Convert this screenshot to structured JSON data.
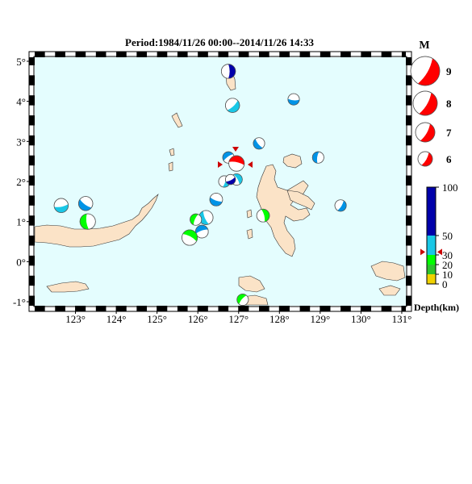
{
  "title": "Period:1984/11/26 00:00--2014/11/26 14:33",
  "colors": {
    "sea": "#e4fdfe",
    "land": "#fbe3c7",
    "compression": "#ff0000",
    "shallow": "#00ff00",
    "intermediate": "#0093e6",
    "intermediate_light": "#19c7e6",
    "deep": "#0000aa",
    "marker": "#cc0000"
  },
  "map": {
    "lon_range": [
      122.0,
      131.1
    ],
    "lat_range": [
      -1.1,
      5.1
    ],
    "lon_ticks": [
      "123°",
      "124°",
      "125°",
      "126°",
      "127°",
      "128°",
      "129°",
      "130°",
      "131°"
    ],
    "lat_ticks": [
      "5°",
      "4°",
      "3°",
      "2°",
      "1°",
      "0°",
      "-1°"
    ]
  },
  "events": [
    {
      "lon": 126.75,
      "lat": 4.75,
      "color": "#0000aa",
      "mag": 6.4
    },
    {
      "lon": 126.85,
      "lat": 3.9,
      "color": "#19c7e6",
      "mag": 6.4
    },
    {
      "lon": 128.35,
      "lat": 4.05,
      "color": "#0093e6",
      "mag": 6.0
    },
    {
      "lon": 127.5,
      "lat": 2.95,
      "color": "#0093e6",
      "mag": 6.0
    },
    {
      "lon": 128.95,
      "lat": 2.6,
      "color": "#0093e6",
      "mag": 6.0
    },
    {
      "lon": 126.75,
      "lat": 2.6,
      "color": "#0093e6",
      "mag": 6.0
    },
    {
      "lon": 126.95,
      "lat": 2.45,
      "color": "#ff0000",
      "mag": 6.6
    },
    {
      "lon": 126.95,
      "lat": 2.05,
      "color": "#19c7e6",
      "mag": 6.0
    },
    {
      "lon": 126.65,
      "lat": 2.0,
      "color": "#19c7e6",
      "mag": 6.0
    },
    {
      "lon": 126.8,
      "lat": 2.05,
      "color": "#0000aa",
      "mag": 5.8
    },
    {
      "lon": 126.45,
      "lat": 1.55,
      "color": "#0093e6",
      "mag": 6.2
    },
    {
      "lon": 126.2,
      "lat": 1.1,
      "color": "#19c7e6",
      "mag": 6.4
    },
    {
      "lon": 125.95,
      "lat": 1.05,
      "color": "#00ff00",
      "mag": 6.0
    },
    {
      "lon": 126.1,
      "lat": 0.75,
      "color": "#0093e6",
      "mag": 6.2
    },
    {
      "lon": 125.8,
      "lat": 0.6,
      "color": "#00ff00",
      "mag": 6.6
    },
    {
      "lon": 127.6,
      "lat": 1.15,
      "color": "#00ff00",
      "mag": 6.2
    },
    {
      "lon": 129.5,
      "lat": 1.4,
      "color": "#0093e6",
      "mag": 6.0
    },
    {
      "lon": 122.65,
      "lat": 1.4,
      "color": "#19c7e6",
      "mag": 6.4
    },
    {
      "lon": 123.25,
      "lat": 1.45,
      "color": "#0093e6",
      "mag": 6.4
    },
    {
      "lon": 123.3,
      "lat": 1.0,
      "color": "#00ff00",
      "mag": 6.6
    },
    {
      "lon": 127.1,
      "lat": -0.95,
      "color": "#00ff00",
      "mag": 6.0
    }
  ],
  "legend": {
    "mag_title": "M",
    "magnitudes": [
      {
        "label": "9",
        "mag": 9
      },
      {
        "label": "8",
        "mag": 8
      },
      {
        "label": "7",
        "mag": 7
      },
      {
        "label": "6",
        "mag": 6
      }
    ],
    "depth_title": "Depth(km)",
    "depth_ticks": [
      "100",
      "50",
      "30",
      "20",
      "10",
      "0"
    ],
    "depth_scale": [
      {
        "from": 0,
        "to": 10,
        "color": "#f0d200"
      },
      {
        "from": 10,
        "to": 20,
        "color": "#2ec32e"
      },
      {
        "from": 20,
        "to": 30,
        "color": "#00ff00"
      },
      {
        "from": 30,
        "to": 50,
        "color": "#19c7e6"
      },
      {
        "from": 50,
        "to": 100,
        "color": "#0000aa"
      }
    ]
  }
}
